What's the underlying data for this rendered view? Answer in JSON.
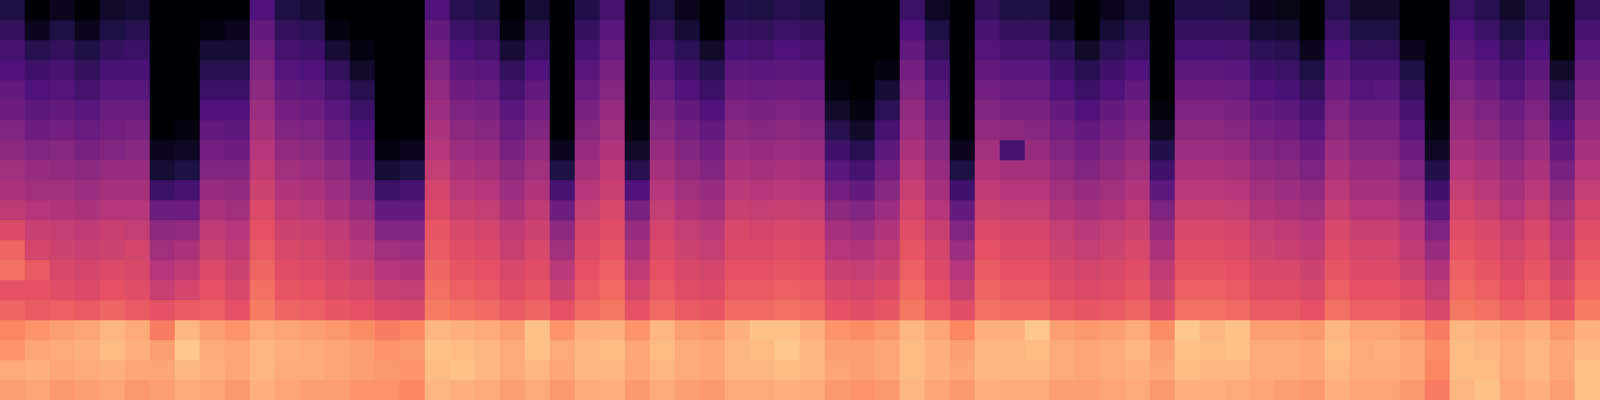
{
  "chart_data": {
    "type": "heatmap",
    "tick_labels": false,
    "zlim": [
      -80,
      0
    ],
    "cells": [
      [
        -16,
        -14,
        -18,
        -20,
        -26,
        -30,
        -24,
        -26,
        -32,
        -38,
        -42,
        -44,
        -48,
        -50,
        -54,
        -56,
        -60,
        -62,
        -66,
        -70
      ],
      [
        -15,
        -13,
        -15,
        -18,
        -28,
        -30,
        -28,
        -34,
        -36,
        -40,
        -44,
        -46,
        -50,
        -54,
        -57,
        -60,
        -63,
        -68,
        -76,
        -80
      ],
      [
        -17,
        -15,
        -14,
        -16,
        -27,
        -31,
        -33,
        -35,
        -37,
        -41,
        -44,
        -47,
        -49,
        -53,
        -56,
        -59,
        -62,
        -66,
        -70,
        -76
      ],
      [
        -16,
        -14,
        -13,
        -15,
        -28,
        -32,
        -34,
        -36,
        -38,
        -42,
        -45,
        -48,
        -52,
        -55,
        -58,
        -62,
        -66,
        -70,
        -76,
        -80
      ],
      [
        -15,
        -13,
        -11,
        -12,
        -26,
        -30,
        -32,
        -35,
        -36,
        -40,
        -43,
        -46,
        -50,
        -53,
        -55,
        -58,
        -61,
        -65,
        -70,
        -74
      ],
      [
        -17,
        -15,
        -13,
        -14,
        -28,
        -31,
        -33,
        -34,
        -37,
        -40,
        -43,
        -46,
        -49,
        -52,
        -55,
        -58,
        -61,
        -64,
        -68,
        -72
      ],
      [
        -16,
        -15,
        -16,
        -22,
        -30,
        -36,
        -40,
        -44,
        -48,
        -55,
        -64,
        -72,
        -76,
        -80,
        -80,
        -80,
        -80,
        -80,
        -80,
        -80
      ],
      [
        -14,
        -12,
        -9,
        -12,
        -28,
        -34,
        -38,
        -42,
        -47,
        -54,
        -62,
        -70,
        -75,
        -78,
        -80,
        -80,
        -80,
        -80,
        -80,
        -80
      ],
      [
        -15,
        -13,
        -14,
        -16,
        -27,
        -30,
        -32,
        -35,
        -38,
        -42,
        -46,
        -50,
        -53,
        -56,
        -60,
        -64,
        -68,
        -72,
        -78,
        -80
      ],
      [
        -17,
        -15,
        -15,
        -18,
        -30,
        -33,
        -35,
        -38,
        -40,
        -44,
        -47,
        -50,
        -54,
        -57,
        -60,
        -64,
        -68,
        -72,
        -76,
        -80
      ],
      [
        -13,
        -12,
        -12,
        -14,
        -22,
        -24,
        -26,
        -28,
        -30,
        -32,
        -35,
        -38,
        -40,
        -43,
        -45,
        -48,
        -50,
        -53,
        -56,
        -60
      ],
      [
        -15,
        -14,
        -13,
        -15,
        -26,
        -29,
        -31,
        -33,
        -35,
        -38,
        -41,
        -44,
        -47,
        -50,
        -53,
        -56,
        -59,
        -62,
        -66,
        -70
      ],
      [
        -16,
        -14,
        -14,
        -16,
        -27,
        -30,
        -32,
        -34,
        -36,
        -39,
        -42,
        -45,
        -48,
        -51,
        -54,
        -57,
        -60,
        -63,
        -67,
        -72
      ],
      [
        -16,
        -15,
        -15,
        -17,
        -29,
        -32,
        -34,
        -36,
        -38,
        -42,
        -45,
        -48,
        -52,
        -55,
        -58,
        -62,
        -66,
        -72,
        -78,
        -80
      ],
      [
        -18,
        -16,
        -16,
        -19,
        -30,
        -33,
        -36,
        -39,
        -42,
        -46,
        -50,
        -54,
        -57,
        -60,
        -64,
        -68,
        -74,
        -78,
        -80,
        -80
      ],
      [
        -18,
        -17,
        -18,
        -22,
        -32,
        -36,
        -40,
        -44,
        -50,
        -56,
        -64,
        -72,
        -78,
        -80,
        -80,
        -80,
        -80,
        -80,
        -80,
        -80
      ],
      [
        -20,
        -18,
        -17,
        -20,
        -33,
        -37,
        -41,
        -45,
        -50,
        -56,
        -62,
        -70,
        -76,
        -80,
        -80,
        -80,
        -80,
        -80,
        -80,
        -80
      ],
      [
        -12,
        -11,
        -10,
        -12,
        -22,
        -24,
        -26,
        -28,
        -29,
        -32,
        -34,
        -37,
        -40,
        -42,
        -45,
        -47,
        -50,
        -53,
        -56,
        -60
      ],
      [
        -13,
        -10,
        -11,
        -13,
        -24,
        -27,
        -29,
        -31,
        -33,
        -36,
        -39,
        -42,
        -45,
        -48,
        -51,
        -54,
        -57,
        -60,
        -64,
        -68
      ],
      [
        -14,
        -12,
        -12,
        -14,
        -25,
        -28,
        -30,
        -32,
        -34,
        -37,
        -40,
        -43,
        -46,
        -49,
        -52,
        -55,
        -58,
        -62,
        -66,
        -70
      ],
      [
        -16,
        -14,
        -14,
        -16,
        -28,
        -31,
        -33,
        -36,
        -38,
        -42,
        -45,
        -48,
        -52,
        -55,
        -58,
        -62,
        -66,
        -72,
        -78,
        -80
      ],
      [
        -14,
        -12,
        -10,
        -10,
        -26,
        -29,
        -31,
        -33,
        -35,
        -38,
        -41,
        -44,
        -47,
        -50,
        -53,
        -56,
        -60,
        -64,
        -68,
        -72
      ],
      [
        -17,
        -15,
        -14,
        -18,
        -30,
        -35,
        -39,
        -44,
        -48,
        -54,
        -62,
        -70,
        -76,
        -80,
        -80,
        -80,
        -80,
        -80,
        -80,
        -80
      ],
      [
        -14,
        -12,
        -12,
        -13,
        -25,
        -28,
        -30,
        -32,
        -34,
        -37,
        -40,
        -43,
        -46,
        -49,
        -52,
        -55,
        -58,
        -61,
        -65,
        -69
      ],
      [
        -13,
        -12,
        -11,
        -13,
        -23,
        -25,
        -27,
        -29,
        -31,
        -33,
        -36,
        -38,
        -41,
        -44,
        -46,
        -49,
        -52,
        -55,
        -58,
        -62
      ],
      [
        -17,
        -15,
        -15,
        -18,
        -30,
        -34,
        -38,
        -42,
        -46,
        -52,
        -60,
        -68,
        -74,
        -78,
        -80,
        -80,
        -80,
        -80,
        -80,
        -80
      ],
      [
        -14,
        -12,
        -11,
        -12,
        -25,
        -28,
        -30,
        -32,
        -34,
        -37,
        -40,
        -43,
        -46,
        -49,
        -52,
        -55,
        -58,
        -62,
        -66,
        -70
      ],
      [
        -16,
        -14,
        -14,
        -16,
        -28,
        -31,
        -33,
        -35,
        -37,
        -41,
        -44,
        -47,
        -50,
        -53,
        -56,
        -60,
        -63,
        -67,
        -72,
        -76
      ],
      [
        -17,
        -15,
        -15,
        -17,
        -29,
        -32,
        -34,
        -37,
        -39,
        -43,
        -46,
        -50,
        -53,
        -56,
        -60,
        -64,
        -68,
        -74,
        -80,
        -80
      ],
      [
        -14,
        -12,
        -12,
        -13,
        -25,
        -28,
        -30,
        -32,
        -33,
        -36,
        -39,
        -42,
        -45,
        -48,
        -51,
        -54,
        -57,
        -61,
        -65,
        -69
      ],
      [
        -14,
        -12,
        -11,
        -10,
        -25,
        -28,
        -30,
        -32,
        -34,
        -37,
        -40,
        -43,
        -46,
        -49,
        -52,
        -55,
        -58,
        -62,
        -66,
        -70
      ],
      [
        -13,
        -11,
        -9,
        -10,
        -24,
        -27,
        -29,
        -31,
        -33,
        -36,
        -39,
        -42,
        -45,
        -48,
        -51,
        -54,
        -57,
        -60,
        -64,
        -68
      ],
      [
        -14,
        -12,
        -12,
        -13,
        -25,
        -28,
        -30,
        -32,
        -34,
        -37,
        -40,
        -43,
        -46,
        -49,
        -52,
        -55,
        -58,
        -62,
        -66,
        -70
      ],
      [
        -17,
        -15,
        -16,
        -18,
        -30,
        -33,
        -36,
        -40,
        -43,
        -48,
        -53,
        -58,
        -63,
        -68,
        -74,
        -78,
        -80,
        -80,
        -80,
        -80
      ],
      [
        -18,
        -16,
        -16,
        -19,
        -31,
        -34,
        -37,
        -41,
        -45,
        -50,
        -56,
        -62,
        -68,
        -74,
        -78,
        -80,
        -80,
        -80,
        -80,
        -80
      ],
      [
        -17,
        -15,
        -15,
        -17,
        -29,
        -32,
        -35,
        -38,
        -41,
        -45,
        -49,
        -53,
        -57,
        -62,
        -67,
        -72,
        -78,
        -80,
        -80,
        -80
      ],
      [
        -12,
        -11,
        -11,
        -12,
        -23,
        -25,
        -27,
        -29,
        -31,
        -34,
        -36,
        -39,
        -42,
        -45,
        -47,
        -50,
        -53,
        -56,
        -60,
        -64
      ],
      [
        -15,
        -13,
        -13,
        -15,
        -27,
        -30,
        -32,
        -34,
        -36,
        -40,
        -43,
        -46,
        -49,
        -52,
        -55,
        -58,
        -62,
        -66,
        -70,
        -75
      ],
      [
        -17,
        -15,
        -16,
        -20,
        -31,
        -36,
        -40,
        -45,
        -50,
        -56,
        -63,
        -70,
        -76,
        -80,
        -80,
        -80,
        -80,
        -80,
        -80,
        -80
      ],
      [
        -13,
        -12,
        -12,
        -13,
        -24,
        -26,
        -28,
        -30,
        -32,
        -35,
        -38,
        -41,
        -44,
        -47,
        -50,
        -53,
        -56,
        -59,
        -62,
        -66
      ],
      [
        -14,
        -12,
        -12,
        -13,
        -25,
        -28,
        -30,
        -32,
        -34,
        -37,
        -40,
        -43,
        -62,
        -48,
        -52,
        -55,
        -58,
        -62,
        -66,
        -70
      ],
      [
        -14,
        -12,
        -11,
        -9,
        -25,
        -28,
        -30,
        -32,
        -34,
        -37,
        -40,
        -43,
        -46,
        -49,
        -52,
        -55,
        -58,
        -62,
        -66,
        -70
      ],
      [
        -16,
        -14,
        -14,
        -16,
        -28,
        -31,
        -33,
        -35,
        -37,
        -41,
        -44,
        -47,
        -50,
        -53,
        -56,
        -60,
        -63,
        -67,
        -72,
        -76
      ],
      [
        -16,
        -15,
        -15,
        -17,
        -29,
        -32,
        -34,
        -37,
        -39,
        -43,
        -46,
        -50,
        -53,
        -56,
        -60,
        -64,
        -68,
        -74,
        -80,
        -80
      ],
      [
        -15,
        -14,
        -14,
        -16,
        -28,
        -31,
        -33,
        -35,
        -37,
        -41,
        -44,
        -47,
        -50,
        -53,
        -56,
        -60,
        -63,
        -67,
        -72,
        -76
      ],
      [
        -14,
        -13,
        -12,
        -14,
        -26,
        -29,
        -31,
        -33,
        -35,
        -38,
        -41,
        -44,
        -47,
        -50,
        -53,
        -56,
        -60,
        -64,
        -68,
        -72
      ],
      [
        -17,
        -15,
        -16,
        -19,
        -31,
        -35,
        -38,
        -42,
        -46,
        -51,
        -57,
        -63,
        -69,
        -75,
        -79,
        -80,
        -80,
        -80,
        -80,
        -80
      ],
      [
        -13,
        -11,
        -10,
        -9,
        -24,
        -27,
        -29,
        -31,
        -33,
        -36,
        -39,
        -42,
        -45,
        -48,
        -51,
        -54,
        -57,
        -61,
        -65,
        -69
      ],
      [
        -13,
        -12,
        -11,
        -12,
        -24,
        -27,
        -29,
        -31,
        -33,
        -36,
        -39,
        -42,
        -45,
        -48,
        -51,
        -54,
        -57,
        -61,
        -65,
        -69
      ],
      [
        -14,
        -12,
        -10,
        -10,
        -25,
        -28,
        -30,
        -32,
        -34,
        -37,
        -40,
        -43,
        -46,
        -49,
        -52,
        -55,
        -58,
        -62,
        -66,
        -70
      ],
      [
        -15,
        -14,
        -14,
        -16,
        -28,
        -31,
        -33,
        -35,
        -37,
        -41,
        -44,
        -47,
        -50,
        -53,
        -56,
        -60,
        -63,
        -67,
        -72,
        -76
      ],
      [
        -16,
        -14,
        -14,
        -16,
        -28,
        -31,
        -33,
        -36,
        -38,
        -42,
        -45,
        -48,
        -51,
        -54,
        -57,
        -61,
        -64,
        -68,
        -73,
        -77
      ],
      [
        -17,
        -15,
        -15,
        -17,
        -30,
        -33,
        -35,
        -38,
        -40,
        -44,
        -47,
        -51,
        -54,
        -58,
        -62,
        -66,
        -70,
        -76,
        -80,
        -80
      ],
      [
        -13,
        -12,
        -11,
        -12,
        -24,
        -27,
        -29,
        -31,
        -33,
        -36,
        -39,
        -42,
        -45,
        -48,
        -51,
        -54,
        -57,
        -60,
        -64,
        -68
      ],
      [
        -15,
        -14,
        -14,
        -15,
        -27,
        -30,
        -32,
        -34,
        -36,
        -40,
        -43,
        -46,
        -49,
        -52,
        -55,
        -59,
        -62,
        -66,
        -70,
        -74
      ],
      [
        -15,
        -14,
        -13,
        -15,
        -27,
        -30,
        -32,
        -34,
        -36,
        -40,
        -43,
        -46,
        -49,
        -52,
        -55,
        -58,
        -62,
        -66,
        -70,
        -74
      ],
      [
        -17,
        -15,
        -15,
        -17,
        -29,
        -32,
        -35,
        -38,
        -40,
        -44,
        -47,
        -51,
        -54,
        -58,
        -62,
        -66,
        -70,
        -76,
        -80,
        -80
      ],
      [
        -22,
        -20,
        -19,
        -22,
        -33,
        -37,
        -41,
        -46,
        -51,
        -57,
        -63,
        -69,
        -75,
        -78,
        -80,
        -80,
        -80,
        -80,
        -80,
        -80
      ],
      [
        -12,
        -11,
        -11,
        -12,
        -23,
        -25,
        -27,
        -29,
        -31,
        -34,
        -37,
        -40,
        -43,
        -46,
        -48,
        -51,
        -54,
        -57,
        -60,
        -64
      ],
      [
        -10,
        -11,
        -12,
        -13,
        -24,
        -27,
        -29,
        -31,
        -33,
        -36,
        -39,
        -42,
        -45,
        -48,
        -51,
        -54,
        -57,
        -60,
        -64,
        -68
      ],
      [
        -15,
        -14,
        -14,
        -15,
        -27,
        -30,
        -32,
        -34,
        -36,
        -40,
        -43,
        -46,
        -49,
        -52,
        -55,
        -59,
        -62,
        -66,
        -70,
        -74
      ],
      [
        -13,
        -12,
        -12,
        -13,
        -25,
        -27,
        -29,
        -31,
        -33,
        -36,
        -39,
        -42,
        -45,
        -48,
        -51,
        -54,
        -57,
        -60,
        -64,
        -68
      ],
      [
        -16,
        -15,
        -15,
        -17,
        -29,
        -32,
        -35,
        -38,
        -40,
        -44,
        -48,
        -52,
        -56,
        -60,
        -64,
        -68,
        -74,
        -80,
        -80,
        -80
      ],
      [
        -10,
        -10,
        -12,
        -13,
        -22,
        -25,
        -27,
        -29,
        -31,
        -34,
        -37,
        -40,
        -43,
        -46,
        -49,
        -52,
        -55,
        -58,
        -62,
        -66
      ]
    ]
  }
}
